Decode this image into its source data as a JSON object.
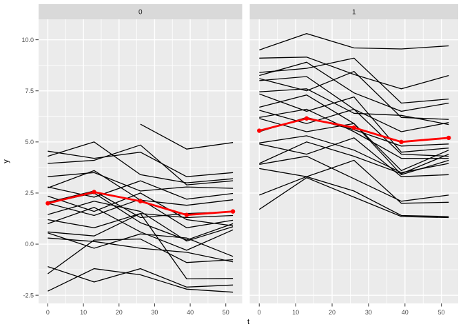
{
  "figure": {
    "xlabel": "t",
    "ylabel": "y"
  },
  "style": {
    "background": "#FFFFFF",
    "panel_bg": "#EBEBEB",
    "strip_bg": "#D9D9D9",
    "grid_color": "#FFFFFF",
    "series_color": "#000000",
    "mean_color": "#FF0000",
    "tick_color": "#333333",
    "tick_text_color": "#4D4D4D",
    "strip_text_color": "#1A1A1A"
  },
  "axes": {
    "x_domain": [
      -2.6,
      54.6
    ],
    "y_domain": [
      -2.9,
      11.0
    ],
    "x_ticks": [
      0,
      10,
      20,
      30,
      40,
      50
    ],
    "x_tick_labels": [
      "0",
      "10",
      "20",
      "30",
      "40",
      "50"
    ],
    "x_minor": [
      5,
      15,
      25,
      35,
      45
    ],
    "y_ticks": [
      -2.5,
      0.0,
      2.5,
      5.0,
      7.5,
      10.0
    ],
    "y_tick_labels": [
      "-2.5",
      "0.0",
      "2.5",
      "5.0",
      "7.5",
      "10.0"
    ],
    "y_minor": [
      -1.25,
      1.25,
      3.75,
      6.25,
      8.75
    ]
  },
  "chart_data": {
    "type": "line",
    "title": "",
    "xlabel": "t",
    "ylabel": "y",
    "x": [
      0,
      13,
      26,
      39,
      52
    ],
    "grid": true,
    "legend": false,
    "facets": [
      {
        "label": "0",
        "mean": [
          2.0,
          2.55,
          2.1,
          1.43,
          1.6
        ],
        "series": [
          [
            4.55,
            4.2,
            4.5,
            3.3,
            3.5
          ],
          [
            4.3,
            5.0,
            3.4,
            3.0,
            3.2
          ],
          [
            3.95,
            4.1,
            4.85,
            2.9,
            3.1
          ],
          [
            3.3,
            3.5,
            2.6,
            2.8,
            2.73
          ],
          [
            2.8,
            2.3,
            3.1,
            2.2,
            2.48
          ],
          [
            2.75,
            3.6,
            2.15,
            1.9,
            2.17
          ],
          [
            2.35,
            1.6,
            2.5,
            1.2,
            0.9
          ],
          [
            2.05,
            2.6,
            1.3,
            1.5,
            1.58
          ],
          [
            2.0,
            1.4,
            2.2,
            0.8,
            1.17
          ],
          [
            1.45,
            2.1,
            1.6,
            0.15,
            0.85
          ],
          [
            1.2,
            0.8,
            1.5,
            1.3,
            1.4
          ],
          [
            1.0,
            1.8,
            0.6,
            -0.3,
            0.7
          ],
          [
            0.6,
            0.4,
            1.5,
            -1.7,
            -1.68
          ],
          [
            0.55,
            -0.2,
            0.5,
            0.3,
            -0.6
          ],
          [
            0.3,
            0.13,
            -0.2,
            -0.4,
            -0.87
          ],
          [
            -1.1,
            -1.85,
            -1.2,
            -2.1,
            -2.0
          ],
          [
            -1.45,
            0.2,
            0.25,
            -0.9,
            -0.76
          ],
          [
            -2.3,
            -1.2,
            -1.5,
            -2.2,
            -2.35
          ],
          [
            null,
            null,
            5.87,
            4.65,
            4.97
          ],
          [
            2.0,
            2.5,
            1.05,
            0.2,
            1.0
          ]
        ]
      },
      {
        "label": "1",
        "mean": [
          5.55,
          6.15,
          5.7,
          5.0,
          5.2
        ],
        "series": [
          [
            9.5,
            10.3,
            9.6,
            9.55,
            9.7
          ],
          [
            9.1,
            9.15,
            8.3,
            7.6,
            8.25
          ],
          [
            8.4,
            8.6,
            9.1,
            6.9,
            7.1
          ],
          [
            8.25,
            8.9,
            7.4,
            6.5,
            6.9
          ],
          [
            8.1,
            7.5,
            8.45,
            6.2,
            6.1
          ],
          [
            8.0,
            8.2,
            6.6,
            5.5,
            5.95
          ],
          [
            7.45,
            7.6,
            6.4,
            6.3,
            5.85
          ],
          [
            7.35,
            6.5,
            7.2,
            4.5,
            4.7
          ],
          [
            6.7,
            7.3,
            5.9,
            3.6,
            4.6
          ],
          [
            6.55,
            5.9,
            6.6,
            4.4,
            4.3
          ],
          [
            6.2,
            6.6,
            5.5,
            4.2,
            4.2
          ],
          [
            6.15,
            5.5,
            5.9,
            3.4,
            4.1
          ],
          [
            5.5,
            6.2,
            5.6,
            4.8,
            4.9
          ],
          [
            4.95,
            5.3,
            4.6,
            3.5,
            3.95
          ],
          [
            4.9,
            4.4,
            5.2,
            3.3,
            3.4
          ],
          [
            3.95,
            5.0,
            4.3,
            3.45,
            4.4
          ],
          [
            3.9,
            4.3,
            3.2,
            2.1,
            2.4
          ],
          [
            3.7,
            3.3,
            4.1,
            2.0,
            2.05
          ],
          [
            2.4,
            3.3,
            2.6,
            1.4,
            1.35
          ],
          [
            1.7,
            3.25,
            2.3,
            1.35,
            1.3
          ]
        ]
      }
    ]
  }
}
